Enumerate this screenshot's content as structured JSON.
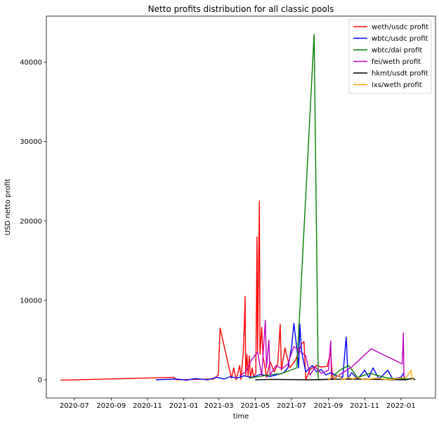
{
  "chart_data": {
    "type": "line",
    "title": "Netto profits distribution for all classic pools",
    "xlabel": "time",
    "ylabel": "USD netto profit",
    "xlim": [
      "2020-05-15",
      "2022-02-28"
    ],
    "ylim": [
      -2300,
      45800
    ],
    "x_ticks": [
      "2020-07",
      "2020-09",
      "2020-11",
      "2021-01",
      "2021-03",
      "2021-05",
      "2021-07",
      "2021-09",
      "2021-11",
      "2022-01"
    ],
    "y_ticks": [
      0,
      10000,
      20000,
      30000,
      40000
    ],
    "legend_position": "upper right",
    "grid": false,
    "series": [
      {
        "name": "weth/usdc profit",
        "color": "#ff0000",
        "points": [
          [
            "2020-06-08",
            -50
          ],
          [
            "2020-12-15",
            300
          ],
          [
            "2020-12-20",
            0
          ],
          [
            "2021-02-20",
            100
          ],
          [
            "2021-02-28",
            600
          ],
          [
            "2021-03-03",
            6500
          ],
          [
            "2021-03-22",
            200
          ],
          [
            "2021-03-26",
            1500
          ],
          [
            "2021-03-30",
            0
          ],
          [
            "2021-04-05",
            1800
          ],
          [
            "2021-04-07",
            0
          ],
          [
            "2021-04-11",
            3500
          ],
          [
            "2021-04-13",
            7600
          ],
          [
            "2021-04-14",
            10500
          ],
          [
            "2021-04-15",
            600
          ],
          [
            "2021-04-17",
            3200
          ],
          [
            "2021-04-19",
            500
          ],
          [
            "2021-04-21",
            3000
          ],
          [
            "2021-04-23",
            200
          ],
          [
            "2021-04-26",
            1500
          ],
          [
            "2021-04-28",
            500
          ],
          [
            "2021-05-02",
            800
          ],
          [
            "2021-05-04",
            18000
          ],
          [
            "2021-05-05",
            3500
          ],
          [
            "2021-05-06",
            10200
          ],
          [
            "2021-05-08",
            22500
          ],
          [
            "2021-05-09",
            3200
          ],
          [
            "2021-05-12",
            6600
          ],
          [
            "2021-05-14",
            3000
          ],
          [
            "2021-05-17",
            1800
          ],
          [
            "2021-05-20",
            300
          ],
          [
            "2021-05-26",
            2300
          ],
          [
            "2021-06-02",
            1000
          ],
          [
            "2021-06-08",
            2000
          ],
          [
            "2021-06-12",
            7000
          ],
          [
            "2021-06-14",
            1200
          ],
          [
            "2021-06-20",
            4000
          ],
          [
            "2021-06-28",
            1500
          ],
          [
            "2021-07-08",
            2500
          ],
          [
            "2021-07-18",
            4500
          ],
          [
            "2021-07-22",
            4800
          ],
          [
            "2021-07-25",
            0
          ],
          [
            "2021-08-01",
            1300
          ],
          [
            "2021-08-12",
            1800
          ],
          [
            "2021-08-20",
            1600
          ],
          [
            "2021-08-30",
            1700
          ],
          [
            "2021-09-05",
            3500
          ],
          [
            "2021-09-08",
            0
          ]
        ]
      },
      {
        "name": "wbtc/usdc profit",
        "color": "#0000ff",
        "points": [
          [
            "2020-11-15",
            0
          ],
          [
            "2020-12-20",
            100
          ],
          [
            "2021-01-05",
            -50
          ],
          [
            "2021-01-20",
            150
          ],
          [
            "2021-02-10",
            0
          ],
          [
            "2021-02-25",
            300
          ],
          [
            "2021-03-10",
            100
          ],
          [
            "2021-03-20",
            400
          ],
          [
            "2021-04-01",
            200
          ],
          [
            "2021-04-12",
            500
          ],
          [
            "2021-04-25",
            300
          ],
          [
            "2021-05-10",
            700
          ],
          [
            "2021-05-25",
            400
          ],
          [
            "2021-06-05",
            600
          ],
          [
            "2021-06-18",
            900
          ],
          [
            "2021-06-25",
            1500
          ],
          [
            "2021-07-01",
            4000
          ],
          [
            "2021-07-05",
            7100
          ],
          [
            "2021-07-10",
            4000
          ],
          [
            "2021-07-13",
            1500
          ],
          [
            "2021-07-15",
            7000
          ],
          [
            "2021-07-18",
            3500
          ],
          [
            "2021-07-25",
            1000
          ],
          [
            "2021-08-05",
            1800
          ],
          [
            "2021-08-12",
            1000
          ],
          [
            "2021-08-20",
            1300
          ],
          [
            "2021-08-28",
            600
          ],
          [
            "2021-09-05",
            900
          ],
          [
            "2021-09-15",
            500
          ],
          [
            "2021-09-25",
            300
          ],
          [
            "2021-10-01",
            5400
          ],
          [
            "2021-10-04",
            200
          ],
          [
            "2021-10-10",
            900
          ],
          [
            "2021-10-20",
            100
          ],
          [
            "2021-11-01",
            1200
          ],
          [
            "2021-11-08",
            300
          ],
          [
            "2021-11-15",
            1500
          ],
          [
            "2021-11-25",
            100
          ],
          [
            "2021-12-10",
            1200
          ],
          [
            "2021-12-18",
            100
          ],
          [
            "2022-01-01",
            300
          ],
          [
            "2022-01-05",
            800
          ],
          [
            "2022-01-08",
            0
          ]
        ]
      },
      {
        "name": "wbtc/dai profit",
        "color": "#008000",
        "points": [
          [
            "2021-04-20",
            200
          ],
          [
            "2021-05-15",
            500
          ],
          [
            "2021-06-15",
            800
          ],
          [
            "2021-07-10",
            1500
          ],
          [
            "2021-08-08",
            43500
          ],
          [
            "2021-08-15",
            0
          ],
          [
            "2021-09-05",
            100
          ],
          [
            "2021-09-20",
            1200
          ],
          [
            "2021-10-05",
            1800
          ],
          [
            "2021-10-20",
            300
          ],
          [
            "2021-11-10",
            800
          ],
          [
            "2021-12-10",
            200
          ],
          [
            "2022-01-05",
            100
          ],
          [
            "2022-01-20",
            100
          ]
        ]
      },
      {
        "name": "fei/weth profit",
        "color": "#c000c0",
        "points": [
          [
            "2021-04-05",
            500
          ],
          [
            "2021-04-15",
            1000
          ],
          [
            "2021-04-25",
            2500
          ],
          [
            "2021-05-05",
            3500
          ],
          [
            "2021-05-12",
            500
          ],
          [
            "2021-05-18",
            7500
          ],
          [
            "2021-05-20",
            1500
          ],
          [
            "2021-05-24",
            5000
          ],
          [
            "2021-05-26",
            600
          ],
          [
            "2021-06-05",
            1800
          ],
          [
            "2021-06-15",
            1400
          ],
          [
            "2021-06-25",
            2000
          ],
          [
            "2021-07-05",
            4200
          ],
          [
            "2021-07-25",
            3000
          ],
          [
            "2021-08-01",
            600
          ],
          [
            "2021-08-10",
            1600
          ],
          [
            "2021-08-20",
            800
          ],
          [
            "2021-09-01",
            1200
          ],
          [
            "2021-09-05",
            4900
          ],
          [
            "2021-09-06",
            100
          ],
          [
            "2021-09-15",
            400
          ],
          [
            "2021-10-10",
            1600
          ],
          [
            "2021-11-12",
            3900
          ],
          [
            "2022-01-03",
            2000
          ],
          [
            "2022-01-05",
            5900
          ],
          [
            "2022-01-06",
            200
          ]
        ]
      },
      {
        "name": "hkmt/usdt profit",
        "color": "#000000",
        "points": [
          [
            "2021-05-01",
            0
          ],
          [
            "2021-06-01",
            50
          ],
          [
            "2021-08-01",
            0
          ],
          [
            "2021-10-01",
            100
          ],
          [
            "2022-01-10",
            0
          ],
          [
            "2022-01-20",
            200
          ],
          [
            "2022-01-25",
            0
          ]
        ]
      },
      {
        "name": "ixs/weth profit",
        "color": "#ffa500",
        "points": [
          [
            "2021-09-01",
            0
          ],
          [
            "2021-09-08",
            400
          ],
          [
            "2021-09-12",
            100
          ],
          [
            "2021-09-18",
            600
          ],
          [
            "2021-09-25",
            0
          ],
          [
            "2021-10-05",
            300
          ],
          [
            "2021-10-12",
            100
          ],
          [
            "2021-10-20",
            300
          ],
          [
            "2021-11-01",
            0
          ],
          [
            "2021-11-20",
            200
          ],
          [
            "2021-12-10",
            0
          ],
          [
            "2022-01-10",
            300
          ],
          [
            "2022-01-18",
            1200
          ],
          [
            "2022-01-20",
            0
          ]
        ]
      }
    ]
  }
}
